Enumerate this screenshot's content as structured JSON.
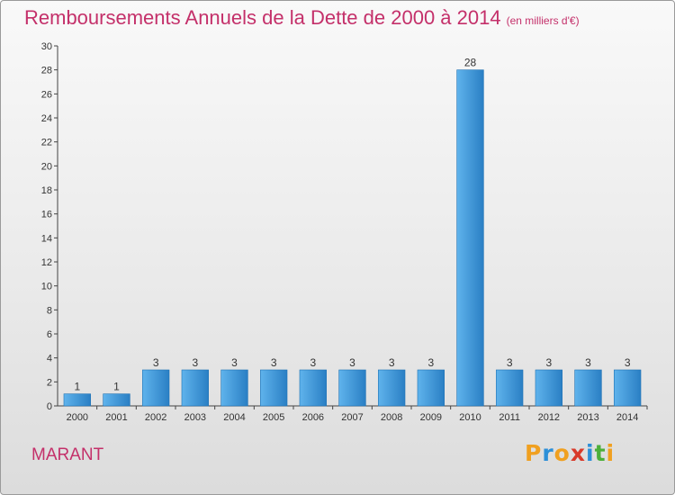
{
  "header": {
    "title": "Remboursements Annuels de la Dette de 2000 à 2014",
    "subtitle": "(en milliers d'€)"
  },
  "footer": {
    "commune": "MARANT",
    "logo_letters": [
      "P",
      "r",
      "o",
      "x",
      "i",
      "t",
      "i"
    ],
    "logo_colors": [
      "#f0a020",
      "#2c8fd8",
      "#f0a020",
      "#d83a2a",
      "#2c8fd8",
      "#4caf3a",
      "#f0a020"
    ]
  },
  "colors": {
    "bar_light": "#5fb3ec",
    "bar_dark": "#1f72b4",
    "axis": "#444444",
    "text": "#c4306a"
  },
  "chart_data": {
    "type": "bar",
    "categories": [
      "2000",
      "2001",
      "2002",
      "2003",
      "2004",
      "2005",
      "2006",
      "2007",
      "2008",
      "2009",
      "2010",
      "2011",
      "2012",
      "2013",
      "2014"
    ],
    "values": [
      1,
      1,
      3,
      3,
      3,
      3,
      3,
      3,
      3,
      3,
      28,
      3,
      3,
      3,
      3
    ],
    "data_labels": [
      "1",
      "1",
      "3",
      "3",
      "3",
      "3",
      "3",
      "3",
      "3",
      "3",
      "28",
      "3",
      "3",
      "3",
      "3"
    ],
    "yticks": [
      "0",
      "2",
      "4",
      "6",
      "8",
      "10",
      "12",
      "14",
      "16",
      "18",
      "20",
      "22",
      "24",
      "26",
      "28",
      "30"
    ],
    "ylim": [
      0,
      30
    ],
    "grid": false,
    "legend": "none"
  }
}
